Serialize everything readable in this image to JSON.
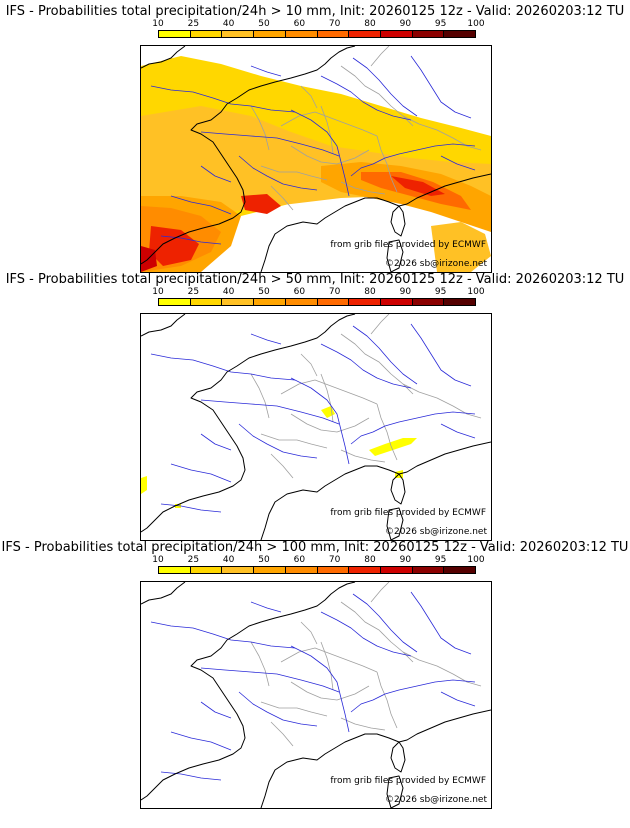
{
  "colorbar": {
    "ticks": [
      "10",
      "25",
      "40",
      "50",
      "60",
      "70",
      "80",
      "90",
      "95",
      "100"
    ],
    "colors": [
      "#ffff00",
      "#ffd700",
      "#ffc125",
      "#ffa500",
      "#ff8c00",
      "#ff6a00",
      "#ee2200",
      "#cd0000",
      "#8b0000",
      "#550000"
    ]
  },
  "map_colors": {
    "coastline": "#000000",
    "rivers": "#2a2ad8",
    "borders": "#a0a0a0"
  },
  "panels": [
    {
      "title": "IFS - Probabilities total precipitation/24h > 10 mm, Init: 20260125 12z - Valid: 20260203:12 TU",
      "coverage": "widespread",
      "credit_source": "from grib files provided by ECMWF",
      "credit_copyright": "©2026 sb@irizone.net"
    },
    {
      "title": "IFS - Probabilities total precipitation/24h > 50 mm, Init: 20260125 12z - Valid: 20260203:12 TU",
      "coverage": "isolated",
      "credit_source": "from grib files provided by ECMWF",
      "credit_copyright": "©2026 sb@irizone.net"
    },
    {
      "title": "IFS - Probabilities total precipitation/24h > 100 mm, Init: 20260125 12z - Valid: 20260203:12 TU",
      "coverage": "none",
      "credit_source": "from grib files provided by ECMWF",
      "credit_copyright": "©2026 sb@irizone.net"
    }
  ]
}
